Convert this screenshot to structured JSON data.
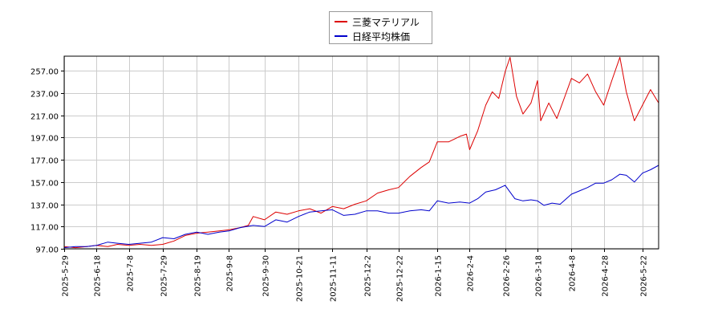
{
  "colors": {
    "series1": "#dd0000",
    "series2": "#0000cc",
    "grid": "#cccccc",
    "axis": "#000000"
  },
  "chart_data": {
    "type": "line",
    "title": "",
    "xlabel": "",
    "ylabel": "",
    "grid": true,
    "legend_position": "top-center",
    "ylim": [
      97,
      270
    ],
    "xlim": [
      "2025-05-29",
      "2026-06-01"
    ],
    "y_ticks": [
      "97.00",
      "117.00",
      "137.00",
      "157.00",
      "177.00",
      "197.00",
      "217.00",
      "237.00",
      "257.00"
    ],
    "x_ticks": [
      "2025-5-29",
      "2025-6-18",
      "2025-7-8",
      "2025-7-29",
      "2025-8-19",
      "2025-9-8",
      "2025-9-30",
      "2025-10-21",
      "2025-11-11",
      "2025-12-2",
      "2025-12-22",
      "2026-1-15",
      "2026-2-4",
      "2026-2-26",
      "2026-3-18",
      "2026-4-8",
      "2026-4-28",
      "2026-5-22"
    ],
    "series": [
      {
        "name": "三菱マテリアル",
        "color": "#dd0000",
        "points": [
          [
            "2025-05-29",
            99
          ],
          [
            "2025-06-05",
            98
          ],
          [
            "2025-06-12",
            99
          ],
          [
            "2025-06-18",
            100
          ],
          [
            "2025-06-25",
            99
          ],
          [
            "2025-07-01",
            101
          ],
          [
            "2025-07-08",
            100
          ],
          [
            "2025-07-15",
            101
          ],
          [
            "2025-07-22",
            100
          ],
          [
            "2025-07-29",
            101
          ],
          [
            "2025-08-05",
            104
          ],
          [
            "2025-08-12",
            109
          ],
          [
            "2025-08-19",
            111
          ],
          [
            "2025-08-26",
            112
          ],
          [
            "2025-09-02",
            113
          ],
          [
            "2025-09-08",
            114
          ],
          [
            "2025-09-15",
            116
          ],
          [
            "2025-09-20",
            118
          ],
          [
            "2025-09-23",
            126
          ],
          [
            "2025-09-30",
            123
          ],
          [
            "2025-10-07",
            130
          ],
          [
            "2025-10-14",
            128
          ],
          [
            "2025-10-21",
            131
          ],
          [
            "2025-10-28",
            133
          ],
          [
            "2025-11-04",
            129
          ],
          [
            "2025-11-11",
            135
          ],
          [
            "2025-11-18",
            133
          ],
          [
            "2025-11-25",
            137
          ],
          [
            "2025-12-02",
            140
          ],
          [
            "2025-12-09",
            147
          ],
          [
            "2025-12-16",
            150
          ],
          [
            "2025-12-22",
            152
          ],
          [
            "2025-12-29",
            162
          ],
          [
            "2026-01-05",
            170
          ],
          [
            "2026-01-10",
            175
          ],
          [
            "2026-01-15",
            193
          ],
          [
            "2026-01-22",
            193
          ],
          [
            "2026-01-29",
            198
          ],
          [
            "2026-02-02",
            200
          ],
          [
            "2026-02-04",
            186
          ],
          [
            "2026-02-09",
            203
          ],
          [
            "2026-02-14",
            226
          ],
          [
            "2026-02-18",
            238
          ],
          [
            "2026-02-22",
            232
          ],
          [
            "2026-02-26",
            256
          ],
          [
            "2026-03-01",
            269
          ],
          [
            "2026-03-05",
            234
          ],
          [
            "2026-03-09",
            218
          ],
          [
            "2026-03-14",
            228
          ],
          [
            "2026-03-18",
            248
          ],
          [
            "2026-03-20",
            212
          ],
          [
            "2026-03-25",
            228
          ],
          [
            "2026-03-30",
            214
          ],
          [
            "2026-04-03",
            230
          ],
          [
            "2026-04-08",
            250
          ],
          [
            "2026-04-13",
            246
          ],
          [
            "2026-04-18",
            254
          ],
          [
            "2026-04-23",
            238
          ],
          [
            "2026-04-28",
            226
          ],
          [
            "2026-05-03",
            248
          ],
          [
            "2026-05-08",
            269
          ],
          [
            "2026-05-12",
            238
          ],
          [
            "2026-05-17",
            212
          ],
          [
            "2026-05-22",
            226
          ],
          [
            "2026-05-27",
            240
          ],
          [
            "2026-06-01",
            228
          ]
        ]
      },
      {
        "name": "日経平均株価",
        "color": "#0000cc",
        "points": [
          [
            "2025-05-29",
            98
          ],
          [
            "2025-06-05",
            99
          ],
          [
            "2025-06-12",
            99
          ],
          [
            "2025-06-18",
            100
          ],
          [
            "2025-06-25",
            103
          ],
          [
            "2025-07-01",
            102
          ],
          [
            "2025-07-08",
            101
          ],
          [
            "2025-07-15",
            102
          ],
          [
            "2025-07-22",
            103
          ],
          [
            "2025-07-29",
            107
          ],
          [
            "2025-08-05",
            106
          ],
          [
            "2025-08-12",
            110
          ],
          [
            "2025-08-19",
            112
          ],
          [
            "2025-08-26",
            110
          ],
          [
            "2025-09-02",
            112
          ],
          [
            "2025-09-08",
            113
          ],
          [
            "2025-09-15",
            116
          ],
          [
            "2025-09-23",
            118
          ],
          [
            "2025-09-30",
            117
          ],
          [
            "2025-10-07",
            123
          ],
          [
            "2025-10-14",
            121
          ],
          [
            "2025-10-21",
            126
          ],
          [
            "2025-10-28",
            130
          ],
          [
            "2025-11-04",
            131
          ],
          [
            "2025-11-11",
            132
          ],
          [
            "2025-11-18",
            127
          ],
          [
            "2025-11-25",
            128
          ],
          [
            "2025-12-02",
            131
          ],
          [
            "2025-12-09",
            131
          ],
          [
            "2025-12-16",
            129
          ],
          [
            "2025-12-22",
            129
          ],
          [
            "2025-12-29",
            131
          ],
          [
            "2026-01-05",
            132
          ],
          [
            "2026-01-10",
            131
          ],
          [
            "2026-01-15",
            140
          ],
          [
            "2026-01-22",
            138
          ],
          [
            "2026-01-29",
            139
          ],
          [
            "2026-02-04",
            138
          ],
          [
            "2026-02-09",
            142
          ],
          [
            "2026-02-14",
            148
          ],
          [
            "2026-02-20",
            150
          ],
          [
            "2026-02-26",
            154
          ],
          [
            "2026-03-04",
            142
          ],
          [
            "2026-03-09",
            140
          ],
          [
            "2026-03-14",
            141
          ],
          [
            "2026-03-18",
            140
          ],
          [
            "2026-03-22",
            136
          ],
          [
            "2026-03-27",
            138
          ],
          [
            "2026-04-01",
            137
          ],
          [
            "2026-04-08",
            146
          ],
          [
            "2026-04-13",
            149
          ],
          [
            "2026-04-18",
            152
          ],
          [
            "2026-04-23",
            156
          ],
          [
            "2026-04-28",
            156
          ],
          [
            "2026-05-03",
            159
          ],
          [
            "2026-05-08",
            164
          ],
          [
            "2026-05-12",
            163
          ],
          [
            "2026-05-17",
            157
          ],
          [
            "2026-05-22",
            165
          ],
          [
            "2026-05-27",
            168
          ],
          [
            "2026-06-01",
            172
          ]
        ]
      }
    ]
  }
}
